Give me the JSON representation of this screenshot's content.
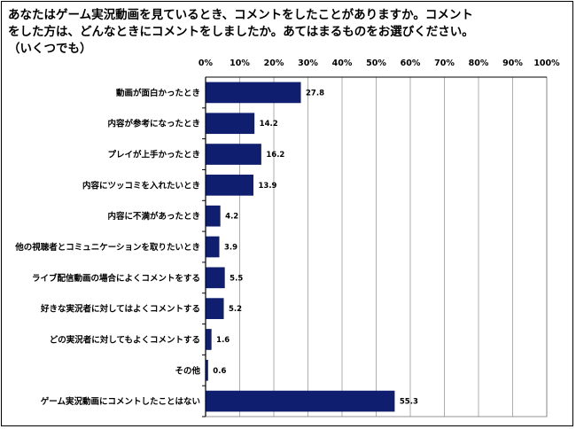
{
  "title_lines": [
    "あなたはゲーム実況動画を見ているとき、コメントをしたことがありますか。コメント",
    "をした方は、どんなときにコメントをしましたか。あてはまるものをお選びください。",
    "（いくつでも）"
  ],
  "chart_data": {
    "type": "bar",
    "orientation": "horizontal",
    "title": "あなたはゲーム実況動画を見ているとき、コメントをしたことがありますか。コメントをした方は、どんなときにコメントをしましたか。あてはまるものをお選びください。（いくつでも）",
    "xlim": [
      0,
      100
    ],
    "ticks": [
      0,
      10,
      20,
      30,
      40,
      50,
      60,
      70,
      80,
      90,
      100
    ],
    "tick_labels": [
      "0%",
      "10%",
      "20%",
      "30%",
      "40%",
      "50%",
      "60%",
      "70%",
      "80%",
      "90%",
      "100%"
    ],
    "grid": true,
    "bar_color": "#0F1E6E",
    "categories": [
      "動画が面白かったとき",
      "内容が参考になったとき",
      "プレイが上手かったとき",
      "内容にツッコミを入れたいとき",
      "内容に不満があったとき",
      "他の視聴者とコミュニケーションを取りたいとき",
      "ライブ配信動画の場合によくコメントをする",
      "好きな実況者に対してはよくコメントする",
      "どの実況者に対してもよくコメントする",
      "その他",
      "ゲーム実況動画にコメントしたことはない"
    ],
    "values": [
      27.8,
      14.2,
      16.2,
      13.9,
      4.2,
      3.9,
      5.5,
      5.2,
      1.6,
      0.6,
      55.3
    ],
    "value_labels": [
      "27.8",
      "14.2",
      "16.2",
      "13.9",
      "4.2",
      "3.9",
      "5.5",
      "5.2",
      "1.6",
      "0.6",
      "55.3"
    ]
  }
}
